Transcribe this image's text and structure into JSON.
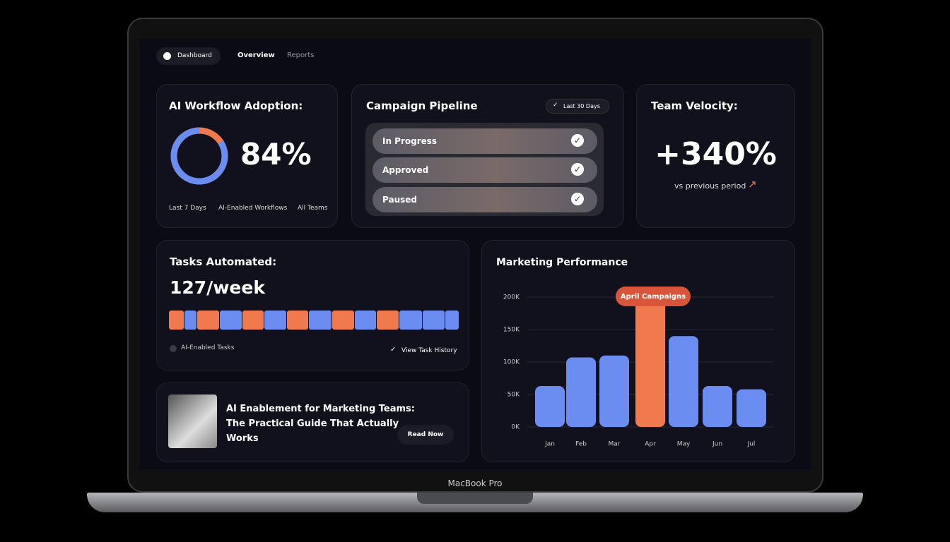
{
  "laptop_label": "MacBook Pro",
  "nav": [
    "Dashboard",
    "Overview",
    "Reports"
  ],
  "adoption": {
    "title": "AI Workflow Adoption:",
    "value": 84,
    "value_label": "84%",
    "filters": [
      "Last 7 Days",
      "AI-Enabled Workflows",
      "All Teams"
    ]
  },
  "pipeline": {
    "title": "Campaign Pipeline",
    "range": "Last 30 Days",
    "items": [
      "In Progress",
      "Approved",
      "Paused"
    ]
  },
  "velocity": {
    "title": "Team Velocity:",
    "value": "+340%",
    "caption": "vs previous period"
  },
  "tasks": {
    "title": "Tasks Automated:",
    "value": "127/week",
    "legend": "AI-Enabled Tasks",
    "link": "View Task History"
  },
  "article": {
    "title": "AI Enablement for Marketing Teams: The Practical Guide That Actually Works",
    "button": "Read Now"
  },
  "chart_data": {
    "type": "bar",
    "title": "Marketing Performance",
    "categories": [
      "Jan",
      "Feb",
      "Mar",
      "Apr",
      "May",
      "Jun",
      "Jul"
    ],
    "values": [
      63000,
      107000,
      110000,
      197000,
      140000,
      63000,
      58000
    ],
    "colors": [
      "#6b8cf0",
      "#6b8cf0",
      "#6b8cf0",
      "#f07a4e",
      "#6b8cf0",
      "#6b8cf0",
      "#6b8cf0"
    ],
    "ylim": [
      0,
      200000
    ],
    "yticks": [
      {
        "value": 0,
        "label": "0K"
      },
      {
        "value": 50000,
        "label": "50K"
      },
      {
        "value": 100000,
        "label": "100K"
      },
      {
        "value": 150000,
        "label": "150K"
      },
      {
        "value": 200000,
        "label": "200K"
      }
    ],
    "grid": true,
    "annotation": {
      "text": "April Campaigns",
      "category": "Apr"
    }
  }
}
